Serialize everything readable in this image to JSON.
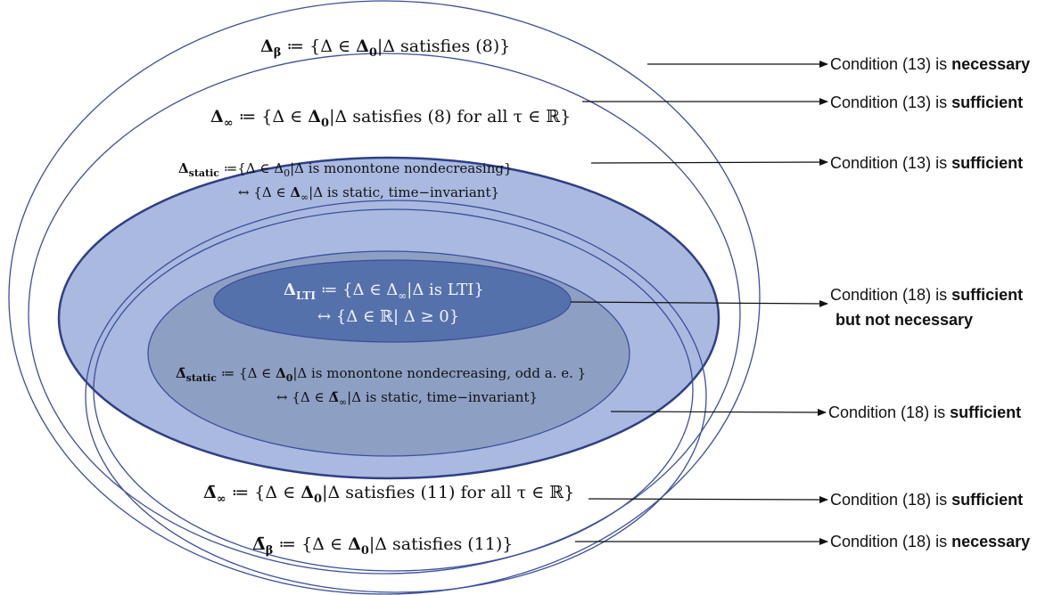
{
  "colors": {
    "outline": "#3b4f9c",
    "static_fill": "#a9b9e0",
    "static_stroke": "#2f3f86",
    "inner_fill": "#8e9fc4",
    "lti_fill": "#5571ac",
    "arrow": "#111111"
  },
  "sets": {
    "beta": {
      "symbol": "Δ",
      "sub": "β",
      "def": " ≔ {Δ ∈ ",
      "d0": "Δ",
      "d0_sub": "0",
      "cond": "|Δ satisfies (8)}"
    },
    "infinity": {
      "symbol": "Δ",
      "sub": "∞",
      "def": " ≔ {Δ ∈ ",
      "d0": "Δ",
      "d0_sub": "0",
      "cond": "|Δ satisfies (8) for all τ ∈ ℝ}"
    },
    "static": {
      "symbol": "Δ",
      "sub": "static",
      "line1": " ≔{Δ ∈ Δ",
      "line1_sub": "0",
      "line1_rest": "|Δ is  monontone nondecreasing}",
      "line2_pre": "↔ {Δ ∈ ",
      "line2_d": "Δ",
      "line2_sub": "∞",
      "line2_rest": "|Δ  is static, time−invariant}"
    },
    "lti": {
      "symbol": "Δ",
      "sub": "LTI",
      "line1": " ≔ {Δ ∈ Δ",
      "line1_sub": "∞",
      "line1_rest": "|Δ is LTI}",
      "line2": "↔ {Δ ∈ ℝ| Δ ≥ 0}"
    },
    "odd_static": {
      "symbol": "Δ̄",
      "sub": "static",
      "line1": " ≔ {Δ ∈ ",
      "line1_d": "Δ",
      "line1_sub": "0",
      "line1_rest": "|Δ is monontone nondecreasing, odd a. e. }",
      "line2_pre": "↔  {Δ ∈ ",
      "line2_d": "Δ̄",
      "line2_sub": "∞",
      "line2_rest": "|Δ  is  static, time−invariant}"
    },
    "odd_infinity": {
      "symbol": "Δ̄",
      "sub": "∞",
      "def": " ≔ {Δ ∈ ",
      "d0": "Δ",
      "d0_sub": "0",
      "cond": "|Δ satisfies (11) for all τ ∈ ℝ}"
    },
    "odd_beta": {
      "symbol": "Δ̄",
      "sub": "β",
      "def": " ≔ {Δ ∈ ",
      "d0": "Δ",
      "d0_sub": "0",
      "cond": "|Δ satisfies (11)}"
    }
  },
  "conditions": [
    {
      "prefix": "Condition (13) is ",
      "emphasis": "necessary"
    },
    {
      "prefix": "Condition (13) is ",
      "emphasis": "sufficient"
    },
    {
      "prefix": "Condition (13) is ",
      "emphasis": "sufficient"
    },
    {
      "prefix": "Condition (18) is ",
      "emphasis": "sufficient",
      "line2": "but not necessary"
    },
    {
      "prefix": "Condition (18) is ",
      "emphasis": "sufficient"
    },
    {
      "prefix": "Condition (18) is ",
      "emphasis": "sufficient"
    },
    {
      "prefix": "Condition (18) is ",
      "emphasis": "necessary"
    }
  ]
}
